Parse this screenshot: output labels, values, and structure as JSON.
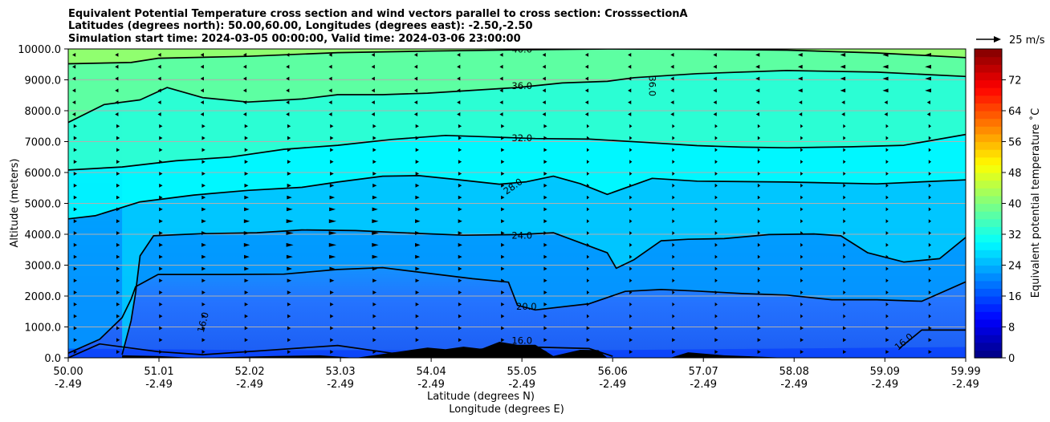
{
  "chart_data": {
    "type": "contour",
    "title_lines": [
      "Equivalent Potential Temperature cross section and wind vectors parallel to cross section: CrosssectionA",
      "Latitudes (degrees north): 50.00,60.00, Longitudes (degrees east): -2.50,-2.50",
      "Simulation start time: 2024-03-05 00:00:00, Valid time: 2024-03-06 23:00:00"
    ],
    "xlabel_lat": "Latitude (degrees N)",
    "xlabel_lon": "Longitude (degrees E)",
    "ylabel": "Altitude (meters)",
    "xlim": [
      50.0,
      59.99
    ],
    "ylim": [
      0,
      10000
    ],
    "x_ticks": [
      {
        "lat": "50.00",
        "lon": "-2.49"
      },
      {
        "lat": "51.01",
        "lon": "-2.49"
      },
      {
        "lat": "52.02",
        "lon": "-2.49"
      },
      {
        "lat": "53.03",
        "lon": "-2.49"
      },
      {
        "lat": "54.04",
        "lon": "-2.49"
      },
      {
        "lat": "55.05",
        "lon": "-2.49"
      },
      {
        "lat": "56.06",
        "lon": "-2.49"
      },
      {
        "lat": "57.07",
        "lon": "-2.49"
      },
      {
        "lat": "58.08",
        "lon": "-2.49"
      },
      {
        "lat": "59.09",
        "lon": "-2.49"
      },
      {
        "lat": "59.99",
        "lon": "-2.49"
      }
    ],
    "y_ticks": [
      "0.0",
      "1000.0",
      "2000.0",
      "3000.0",
      "4000.0",
      "5000.0",
      "6000.0",
      "7000.0",
      "8000.0",
      "9000.0",
      "10000.0"
    ],
    "y_tick_values": [
      0,
      1000,
      2000,
      3000,
      4000,
      5000,
      6000,
      7000,
      8000,
      9000,
      10000
    ],
    "colorbar": {
      "label": "Equivalent potential temperature ˚C",
      "range": [
        0,
        80
      ],
      "step": 2,
      "ticks": [
        "0",
        "8",
        "16",
        "24",
        "32",
        "40",
        "48",
        "56",
        "64",
        "72"
      ],
      "tick_values": [
        0,
        8,
        16,
        24,
        32,
        40,
        48,
        56,
        64,
        72
      ]
    },
    "contour_levels": [
      16,
      20,
      24,
      28,
      32,
      36,
      40
    ],
    "contours": [
      {
        "level": 40,
        "label": "40.0",
        "points": [
          [
            50.0,
            9520
          ],
          [
            50.7,
            9560
          ],
          [
            51.0,
            9700
          ],
          [
            52.0,
            9760
          ],
          [
            53.0,
            9880
          ],
          [
            54.0,
            9930
          ],
          [
            55.0,
            9970
          ],
          [
            56.0,
            10000
          ],
          [
            57.0,
            9990
          ],
          [
            58.0,
            9960
          ],
          [
            59.0,
            9870
          ],
          [
            59.99,
            9720
          ]
        ]
      },
      {
        "level": 36,
        "label": "36.0",
        "points": [
          [
            50.0,
            7620
          ],
          [
            50.4,
            8200
          ],
          [
            50.8,
            8350
          ],
          [
            51.1,
            8750
          ],
          [
            51.5,
            8420
          ],
          [
            52.0,
            8280
          ],
          [
            52.6,
            8380
          ],
          [
            53.0,
            8520
          ],
          [
            53.5,
            8520
          ],
          [
            54.0,
            8570
          ],
          [
            55.0,
            8750
          ],
          [
            55.5,
            8900
          ],
          [
            56.0,
            8950
          ],
          [
            56.3,
            9070
          ],
          [
            57.0,
            9200
          ],
          [
            58.0,
            9300
          ],
          [
            59.0,
            9250
          ],
          [
            59.99,
            9110
          ]
        ]
      },
      {
        "level": 32,
        "label": "32.0",
        "points": [
          [
            50.0,
            6080
          ],
          [
            50.6,
            6180
          ],
          [
            51.2,
            6380
          ],
          [
            51.8,
            6500
          ],
          [
            52.4,
            6750
          ],
          [
            53.0,
            6880
          ],
          [
            53.6,
            7070
          ],
          [
            54.2,
            7200
          ],
          [
            54.7,
            7150
          ],
          [
            55.2,
            7100
          ],
          [
            55.8,
            7080
          ],
          [
            56.4,
            6980
          ],
          [
            57.0,
            6870
          ],
          [
            57.5,
            6820
          ],
          [
            58.0,
            6800
          ],
          [
            58.7,
            6830
          ],
          [
            59.3,
            6880
          ],
          [
            59.99,
            7230
          ]
        ]
      },
      {
        "level": 28,
        "label": "28.0",
        "points": [
          [
            50.0,
            4500
          ],
          [
            50.3,
            4600
          ],
          [
            50.8,
            5050
          ],
          [
            51.4,
            5270
          ],
          [
            52.0,
            5420
          ],
          [
            52.6,
            5520
          ],
          [
            53.0,
            5690
          ],
          [
            53.5,
            5880
          ],
          [
            53.9,
            5900
          ],
          [
            54.3,
            5780
          ],
          [
            54.8,
            5620
          ],
          [
            55.1,
            5700
          ],
          [
            55.4,
            5880
          ],
          [
            55.7,
            5640
          ],
          [
            56.0,
            5290
          ],
          [
            56.5,
            5810
          ],
          [
            57.0,
            5720
          ],
          [
            58.0,
            5690
          ],
          [
            59.0,
            5630
          ],
          [
            59.99,
            5760
          ]
        ]
      },
      {
        "level": 24,
        "label": "24.0",
        "points": [
          [
            50.6,
            100
          ],
          [
            50.7,
            1200
          ],
          [
            50.75,
            2100
          ],
          [
            50.8,
            3300
          ],
          [
            50.95,
            3950
          ],
          [
            51.5,
            4020
          ],
          [
            52.1,
            4050
          ],
          [
            52.6,
            4140
          ],
          [
            53.2,
            4120
          ],
          [
            53.8,
            4040
          ],
          [
            54.4,
            3970
          ],
          [
            55.0,
            3990
          ],
          [
            55.4,
            4050
          ],
          [
            56.0,
            3400
          ],
          [
            56.1,
            2900
          ],
          [
            56.3,
            3180
          ],
          [
            56.6,
            3790
          ],
          [
            56.9,
            3840
          ],
          [
            57.3,
            3860
          ],
          [
            57.8,
            3990
          ],
          [
            58.3,
            4010
          ],
          [
            58.6,
            3950
          ],
          [
            58.9,
            3400
          ],
          [
            59.3,
            3100
          ],
          [
            59.7,
            3210
          ],
          [
            59.99,
            3900
          ]
        ]
      },
      {
        "level": 20,
        "label": "20.0",
        "points": [
          [
            50.0,
            150
          ],
          [
            50.35,
            600
          ],
          [
            50.6,
            1300
          ],
          [
            50.7,
            1900
          ],
          [
            50.75,
            2300
          ],
          [
            51.0,
            2700
          ],
          [
            51.8,
            2700
          ],
          [
            52.4,
            2710
          ],
          [
            53.0,
            2860
          ],
          [
            53.5,
            2920
          ],
          [
            54.0,
            2740
          ],
          [
            54.5,
            2560
          ],
          [
            54.9,
            2450
          ],
          [
            55.0,
            1700
          ],
          [
            55.2,
            1550
          ],
          [
            55.8,
            1750
          ],
          [
            56.2,
            2150
          ],
          [
            56.6,
            2210
          ],
          [
            57.0,
            2160
          ],
          [
            57.5,
            2080
          ],
          [
            58.0,
            2030
          ],
          [
            58.5,
            1880
          ],
          [
            59.0,
            1880
          ],
          [
            59.5,
            1830
          ],
          [
            59.99,
            2460
          ]
        ]
      },
      {
        "level": 16,
        "label": "16.0",
        "points": [
          [
            50.0,
            0
          ],
          [
            50.35,
            450
          ],
          [
            51.0,
            200
          ],
          [
            51.5,
            100
          ],
          [
            52.0,
            200
          ],
          [
            53.0,
            400
          ],
          [
            53.6,
            150
          ],
          [
            54.5,
            260
          ],
          [
            55.0,
            360
          ],
          [
            55.8,
            300
          ],
          [
            56.06,
            50
          ]
        ]
      },
      {
        "level": 16,
        "label": "16.0",
        "points": [
          [
            59.25,
            300
          ],
          [
            59.5,
            900
          ],
          [
            59.99,
            900
          ]
        ]
      }
    ],
    "contour_label_positions": [
      {
        "label": "40.0",
        "lat": 55.05,
        "alt": 9990
      },
      {
        "label": "36.0",
        "lat": 55.05,
        "alt": 8800
      },
      {
        "label": "36.0",
        "lat": 56.5,
        "alt": 8800
      },
      {
        "label": "32.0",
        "lat": 55.05,
        "alt": 7120
      },
      {
        "label": "28.0",
        "lat": 54.95,
        "alt": 5550
      },
      {
        "label": "24.0",
        "lat": 55.05,
        "alt": 3960
      },
      {
        "label": "20.0",
        "lat": 55.1,
        "alt": 1660
      },
      {
        "label": "16.0",
        "lat": 55.05,
        "alt": 560
      },
      {
        "label": "16.0",
        "lat": 51.5,
        "alt": 1150
      },
      {
        "label": "16.0",
        "lat": 59.3,
        "alt": 520
      }
    ],
    "wind_vectors": {
      "reference": {
        "label": "25 m/s",
        "speed": 25
      },
      "lower_direction": "east",
      "upper_direction": "west",
      "reversal_alt_approx": 7800
    },
    "terrain": [
      {
        "lat": 50.6,
        "top": 80
      },
      {
        "lat": 51.0,
        "top": 60
      },
      {
        "lat": 51.4,
        "top": 0
      },
      {
        "lat": 52.3,
        "top": 60
      },
      {
        "lat": 52.8,
        "top": 80
      },
      {
        "lat": 53.2,
        "top": 0
      },
      {
        "lat": 53.8,
        "top": 250
      },
      {
        "lat": 54.0,
        "top": 330
      },
      {
        "lat": 54.2,
        "top": 280
      },
      {
        "lat": 54.4,
        "top": 360
      },
      {
        "lat": 54.6,
        "top": 290
      },
      {
        "lat": 54.8,
        "top": 520
      },
      {
        "lat": 55.0,
        "top": 420
      },
      {
        "lat": 55.2,
        "top": 420
      },
      {
        "lat": 55.4,
        "top": 60
      },
      {
        "lat": 55.7,
        "top": 260
      },
      {
        "lat": 55.9,
        "top": 250
      },
      {
        "lat": 56.0,
        "top": 0
      },
      {
        "lat": 56.7,
        "top": 0
      },
      {
        "lat": 56.9,
        "top": 180
      },
      {
        "lat": 57.3,
        "top": 80
      },
      {
        "lat": 57.6,
        "top": 50
      },
      {
        "lat": 58.0,
        "top": 0
      }
    ]
  }
}
